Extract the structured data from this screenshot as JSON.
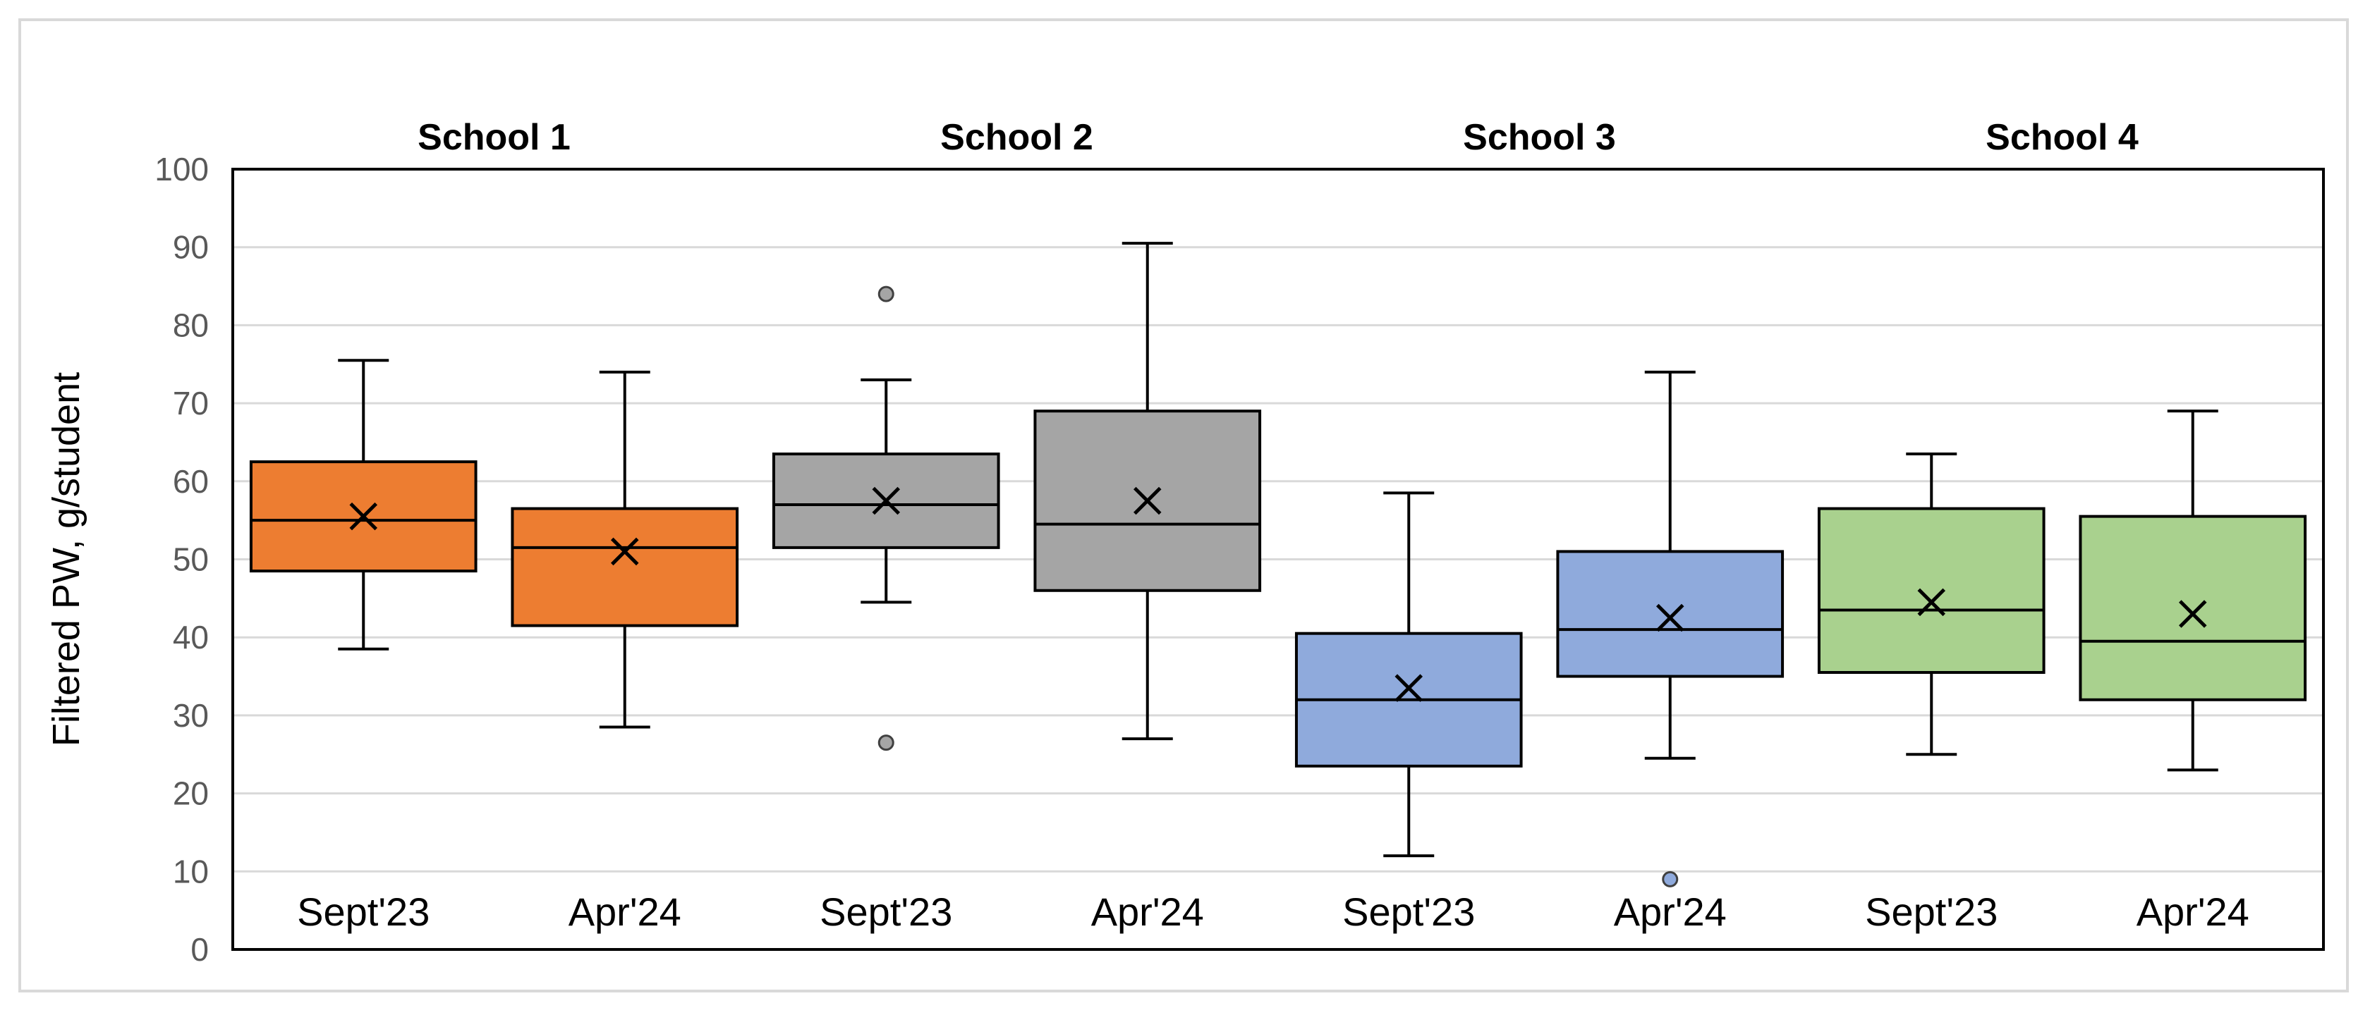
{
  "chart_data": {
    "type": "box",
    "ylabel": "Filtered PW, g/student",
    "ylim": [
      0,
      100
    ],
    "yticks": [
      0,
      10,
      20,
      30,
      40,
      50,
      60,
      70,
      80,
      90,
      100
    ],
    "grid": true,
    "groups": [
      {
        "label": "School 1",
        "color": "#ED7D31",
        "boxes": [
          {
            "label": "Sept'23",
            "min": 38.5,
            "q1": 48.5,
            "median": 55,
            "q3": 62.5,
            "max": 75.5,
            "mean": 55.5,
            "outliers": []
          },
          {
            "label": "Apr'24",
            "min": 28.5,
            "q1": 41.5,
            "median": 51.5,
            "q3": 56.5,
            "max": 74,
            "mean": 51,
            "outliers": []
          }
        ]
      },
      {
        "label": "School 2",
        "color": "#A5A5A5",
        "boxes": [
          {
            "label": "Sept'23",
            "min": 44.5,
            "q1": 51.5,
            "median": 57,
            "q3": 63.5,
            "max": 73,
            "mean": 57.5,
            "outliers": [
              84,
              26.5
            ]
          },
          {
            "label": "Apr'24",
            "min": 27,
            "q1": 46,
            "median": 54.5,
            "q3": 69,
            "max": 90.5,
            "mean": 57.5,
            "outliers": []
          }
        ]
      },
      {
        "label": "School 3",
        "color": "#8FAADC",
        "boxes": [
          {
            "label": "Sept'23",
            "min": 12,
            "q1": 23.5,
            "median": 32,
            "q3": 40.5,
            "max": 58.5,
            "mean": 33.5,
            "outliers": []
          },
          {
            "label": "Apr'24",
            "min": 24.5,
            "q1": 35,
            "median": 41,
            "q3": 51,
            "max": 74,
            "mean": 42.5,
            "outliers": [
              9
            ]
          }
        ]
      },
      {
        "label": "School 4",
        "color": "#A9D18E",
        "boxes": [
          {
            "label": "Sept'23",
            "min": 25,
            "q1": 35.5,
            "median": 43.5,
            "q3": 56.5,
            "max": 63.5,
            "mean": 44.5,
            "outliers": []
          },
          {
            "label": "Apr'24",
            "min": 23,
            "q1": 32,
            "median": 39.5,
            "q3": 55.5,
            "max": 69,
            "mean": 43,
            "outliers": []
          }
        ]
      }
    ]
  }
}
